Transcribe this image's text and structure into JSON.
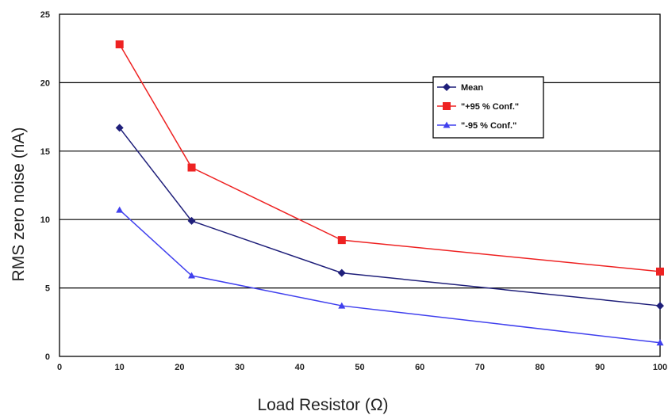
{
  "chart_data": {
    "type": "line",
    "title": "",
    "xlabel": "Load Resistor (Ω)",
    "ylabel": "RMS zero noise (nA)",
    "xlim": [
      0,
      100
    ],
    "ylim": [
      0,
      25
    ],
    "x_ticks": [
      0,
      10,
      20,
      30,
      40,
      50,
      60,
      70,
      80,
      90,
      100
    ],
    "y_ticks": [
      0,
      5,
      10,
      15,
      20,
      25
    ],
    "x": [
      10,
      22,
      47,
      100
    ],
    "grid": "horizontal",
    "legend_position": "top-right",
    "series": [
      {
        "name": "Mean",
        "marker": "diamond",
        "color": "#1f1f7a",
        "values": [
          16.7,
          9.9,
          6.1,
          3.7
        ]
      },
      {
        "name": "\"+95 % Conf.\"",
        "marker": "square",
        "color": "#ee2222",
        "values": [
          22.8,
          13.8,
          8.5,
          6.2
        ]
      },
      {
        "name": "\"-95 % Conf.\"",
        "marker": "triangle",
        "color": "#4040ee",
        "values": [
          10.7,
          5.9,
          3.7,
          1.0
        ]
      }
    ]
  }
}
